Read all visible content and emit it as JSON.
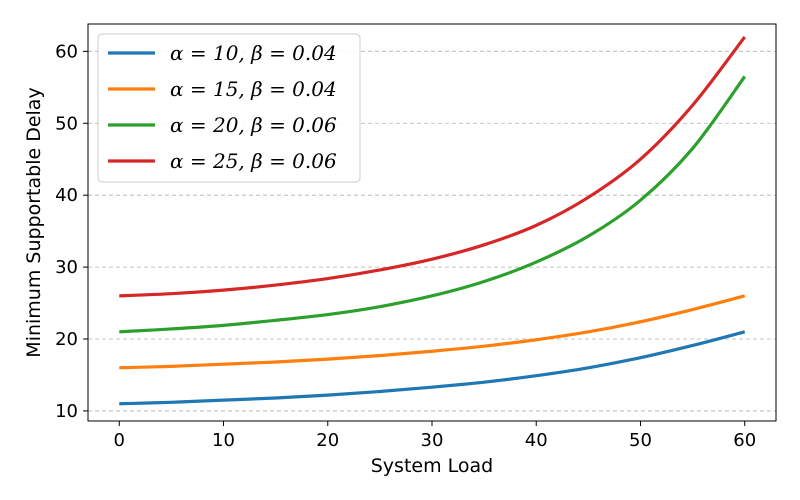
{
  "chart_data": {
    "type": "line",
    "title": "",
    "xlabel": "System Load",
    "ylabel": "Minimum Supportable Delay",
    "xlim": [
      -3,
      63
    ],
    "ylim": [
      8.6,
      63.8
    ],
    "xticks": [
      0,
      10,
      20,
      30,
      40,
      50,
      60
    ],
    "yticks": [
      10,
      20,
      30,
      40,
      50,
      60
    ],
    "grid": "y-dashed",
    "legend_position": "top-left",
    "x": [
      0,
      5,
      10,
      15,
      20,
      25,
      30,
      35,
      40,
      45,
      50,
      55,
      60
    ],
    "series": [
      {
        "name": "α = 10,  β = 0.04",
        "color": "#1f77b4",
        "values": [
          11.0,
          11.2,
          11.5,
          11.8,
          12.2,
          12.7,
          13.3,
          14.0,
          14.9,
          16.0,
          17.4,
          19.1,
          21.0
        ]
      },
      {
        "name": "α = 15,  β = 0.04",
        "color": "#ff7f0e",
        "values": [
          16.0,
          16.2,
          16.5,
          16.8,
          17.2,
          17.7,
          18.3,
          19.0,
          19.9,
          21.0,
          22.4,
          24.1,
          26.0
        ]
      },
      {
        "name": "α = 20,  β = 0.06",
        "color": "#2ca02c",
        "values": [
          21.0,
          21.4,
          21.9,
          22.6,
          23.4,
          24.5,
          26.0,
          28.0,
          30.7,
          34.3,
          39.3,
          46.5,
          56.5
        ]
      },
      {
        "name": "α = 25,  β = 0.06",
        "color": "#d62728",
        "values": [
          26.0,
          26.3,
          26.8,
          27.5,
          28.4,
          29.6,
          31.1,
          33.1,
          35.8,
          39.7,
          45.0,
          52.5,
          62.0
        ]
      }
    ]
  }
}
